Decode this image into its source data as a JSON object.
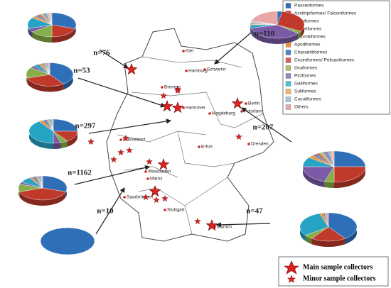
{
  "orders": [
    {
      "name": "Passeriformes",
      "color": "#2e6fb7"
    },
    {
      "name": "Accitripiformes/ Falconiformes",
      "color": "#c0392b"
    },
    {
      "name": "Strigiformes",
      "color": "#86ad48"
    },
    {
      "name": "Anseriformes",
      "color": "#7b5aa6"
    },
    {
      "name": "Columbiformes",
      "color": "#27a3c4"
    },
    {
      "name": "Apodiformes",
      "color": "#f0923a"
    },
    {
      "name": "Charadriiformes",
      "color": "#4a86c5"
    },
    {
      "name": "Ciconiformes/ Pelicaniformes",
      "color": "#d9605a"
    },
    {
      "name": "Gruiformes",
      "color": "#a9c66a"
    },
    {
      "name": "Piciformes",
      "color": "#9a86c0"
    },
    {
      "name": "Galliformes",
      "color": "#4fc1d8"
    },
    {
      "name": "Suliformes",
      "color": "#f5b26b"
    },
    {
      "name": "Cuculiformes",
      "color": "#a8c4e0"
    },
    {
      "name": "Others",
      "color": "#e9a8a8"
    }
  ],
  "pies": [
    {
      "label": "n=76",
      "values": [
        30,
        20,
        15,
        5,
        15,
        3,
        2,
        2,
        2,
        2,
        1,
        1,
        1,
        1
      ]
    },
    {
      "label": "n=53",
      "values": [
        40,
        30,
        15,
        3,
        4,
        2,
        1,
        1,
        1,
        1,
        1,
        0,
        0,
        1
      ]
    },
    {
      "label": "n=297",
      "values": [
        25,
        15,
        5,
        5,
        40,
        3,
        2,
        1,
        1,
        1,
        1,
        0,
        0,
        1
      ]
    },
    {
      "label": "n=1162",
      "values": [
        30,
        40,
        10,
        3,
        8,
        2,
        2,
        1,
        1,
        1,
        1,
        0,
        0,
        1
      ]
    },
    {
      "label": "n=10",
      "values": [
        100,
        0,
        0,
        0,
        0,
        0,
        0,
        0,
        0,
        0,
        0,
        0,
        0,
        0
      ]
    },
    {
      "label": "n=110",
      "values": [
        3,
        30,
        3,
        35,
        4,
        1,
        1,
        1,
        1,
        1,
        0,
        0,
        0,
        20
      ]
    },
    {
      "label": "n=207",
      "values": [
        25,
        25,
        5,
        20,
        10,
        3,
        2,
        2,
        2,
        3,
        1,
        1,
        0,
        1
      ]
    },
    {
      "label": "n=47",
      "values": [
        40,
        20,
        5,
        0,
        30,
        2,
        1,
        0,
        0,
        0,
        0,
        0,
        0,
        2
      ]
    }
  ],
  "cities": [
    "Kiel",
    "Hamburg",
    "Schwerin",
    "Bremen",
    "Hannover",
    "Berlin",
    "Potsdam",
    "Magdeburg",
    "Düsseldorf",
    "Erfurt",
    "Dresden",
    "Wiesbaden",
    "Mainz",
    "Saarbrücken",
    "Stuttgart",
    "Munich"
  ],
  "collectors": {
    "main": "Main sample collectors",
    "minor": "Minor sample collectors"
  }
}
